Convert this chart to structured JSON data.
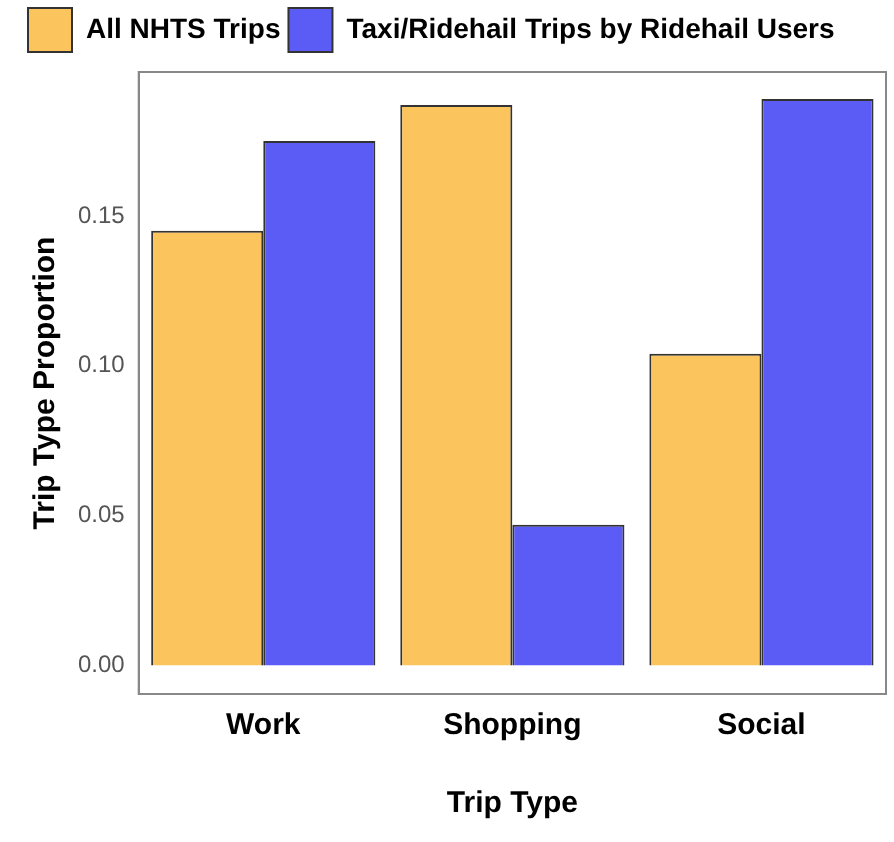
{
  "chart_data": {
    "type": "bar",
    "xlabel": "Trip Type",
    "ylabel": "Trip Type Proportion",
    "categories": [
      "Work",
      "Shopping",
      "Social"
    ],
    "series": [
      {
        "name": "All NHTS Trips",
        "color": "#fcc45c",
        "values": [
          0.145,
          0.187,
          0.104
        ]
      },
      {
        "name": "Taxi/Ridehail Trips by Ridehail Users",
        "color": "#5b5bf5",
        "values": [
          0.175,
          0.047,
          0.189
        ]
      }
    ],
    "ylim": [
      -0.0095,
      0.198
    ],
    "yticks": [
      {
        "value": 0,
        "label": "0.00"
      },
      {
        "value": 0.05,
        "label": "0.05"
      },
      {
        "value": 0.1,
        "label": "0.10"
      },
      {
        "value": 0.15,
        "label": "0.15"
      }
    ],
    "grid": false,
    "legend": "top left"
  }
}
